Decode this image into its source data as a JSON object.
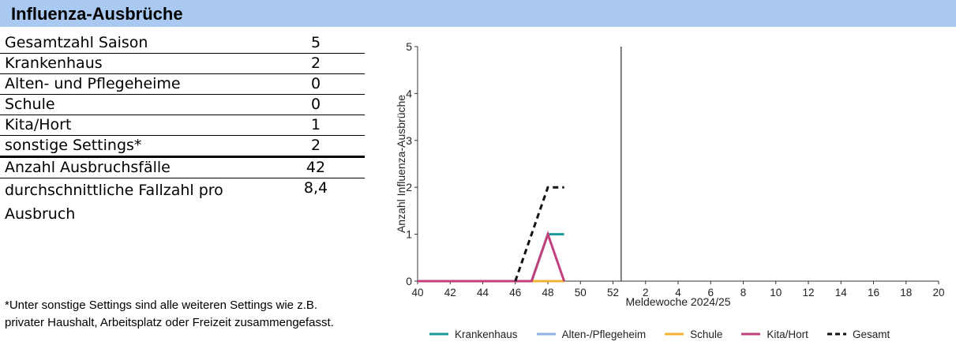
{
  "title": "Influenza-Ausbrüche",
  "stats": [
    {
      "label": "Gesamtzahl Saison",
      "value": "5"
    },
    {
      "label": "Krankenhaus",
      "value": "2"
    },
    {
      "label": "Alten- und Pflegeheime",
      "value": "0"
    },
    {
      "label": "Schule",
      "value": "0"
    },
    {
      "label": "Kita/Hort",
      "value": "1"
    },
    {
      "label": "sonstige Settings*",
      "value": "2"
    },
    {
      "label": "Anzahl Ausbruchsfälle",
      "value": "42"
    },
    {
      "label": "durchschnittliche Fallzahl pro Ausbruch",
      "value": "8,4"
    }
  ],
  "footnote": "*Unter sonstige Settings sind alle weiteren Settings wie z.B. privater Haushalt, Arbeitsplatz oder Freizeit zusammengefasst.",
  "chart_data": {
    "type": "line",
    "xlabel": "Meldewoche 2024/25",
    "ylabel": "Anzahl Influenza-Ausbrüche",
    "ylim": [
      0,
      5
    ],
    "yticks": [
      0,
      1,
      2,
      3,
      4,
      5
    ],
    "x_ticks": [
      "40",
      "42",
      "44",
      "46",
      "48",
      "50",
      "52",
      "2",
      "4",
      "6",
      "8",
      "10",
      "12",
      "14",
      "16",
      "18",
      "20"
    ],
    "year_boundary_after_week": 52,
    "grid": false,
    "legend_position": "bottom",
    "series": [
      {
        "name": "Krankenhaus",
        "color": "#1a9a9a",
        "dash": "solid",
        "x": [
          "40",
          "41",
          "42",
          "43",
          "44",
          "45",
          "46",
          "47",
          "48",
          "49"
        ],
        "values": [
          0,
          0,
          0,
          0,
          0,
          0,
          0,
          0,
          1,
          1
        ]
      },
      {
        "name": "Alten-/Pflegeheim",
        "color": "#8fb3e0",
        "dash": "solid",
        "x": [
          "40",
          "41",
          "42",
          "43",
          "44",
          "45",
          "46",
          "47",
          "48",
          "49"
        ],
        "values": [
          0,
          0,
          0,
          0,
          0,
          0,
          0,
          0,
          0,
          0
        ]
      },
      {
        "name": "Schule",
        "color": "#f2b233",
        "dash": "solid",
        "x": [
          "40",
          "41",
          "42",
          "43",
          "44",
          "45",
          "46",
          "47",
          "48",
          "49"
        ],
        "values": [
          0,
          0,
          0,
          0,
          0,
          0,
          0,
          0,
          0,
          0
        ]
      },
      {
        "name": "Kita/Hort",
        "color": "#c2407e",
        "dash": "solid",
        "x": [
          "40",
          "41",
          "42",
          "43",
          "44",
          "45",
          "46",
          "47",
          "48",
          "49"
        ],
        "values": [
          0,
          0,
          0,
          0,
          0,
          0,
          0,
          0,
          1,
          0
        ]
      },
      {
        "name": "Gesamt",
        "color": "#111111",
        "dash": "dashed",
        "x": [
          "46",
          "47",
          "48",
          "49"
        ],
        "values": [
          0,
          1,
          2,
          2
        ]
      }
    ]
  }
}
